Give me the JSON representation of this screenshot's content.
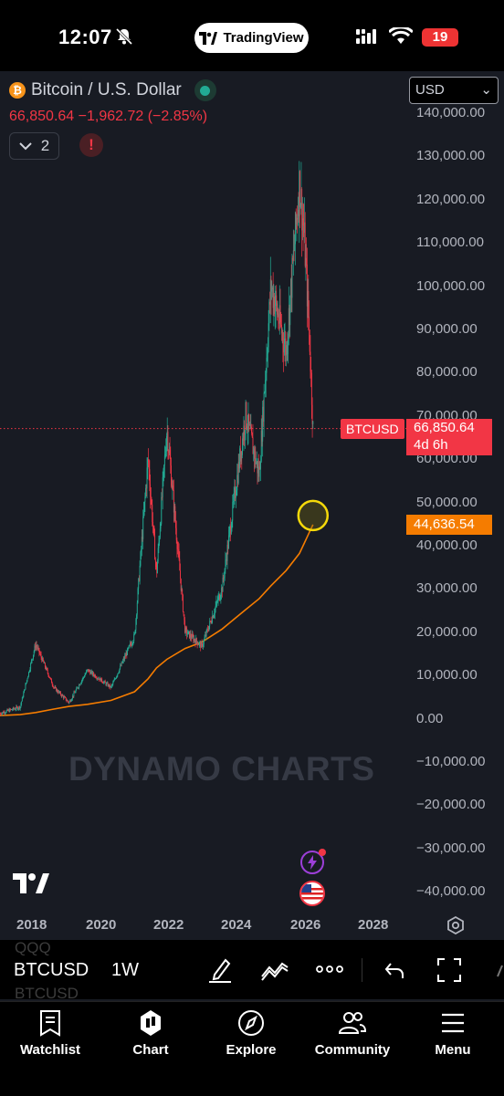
{
  "status_bar": {
    "time": "12:07",
    "app_pill": "TradingView",
    "battery": "19"
  },
  "header": {
    "symbol_name": "Bitcoin / U.S. Dollar",
    "price_change": "66,850.64  −1,962.72 (−2.85%)",
    "collapse_count": "2",
    "alert_glyph": "!",
    "currency": "USD",
    "colors": {
      "down": "#f23645",
      "up": "#22ab94",
      "accent": "#2962ff"
    }
  },
  "chart": {
    "watermark": "DYNAMO CHARTS",
    "price_tag_symbol": "BTCUSD",
    "last_price": "66,850.64",
    "countdown": "4d 6h",
    "ma_value": "44,636.54",
    "y_axis_labels": [
      "140,000.00",
      "130,000.00",
      "120,000.00",
      "110,000.00",
      "100,000.00",
      "90,000.00",
      "80,000.00",
      "70,000.00",
      "60,000.00",
      "50,000.00",
      "40,000.00",
      "30,000.00",
      "20,000.00",
      "10,000.00",
      "0.00",
      "−10,000.00",
      "−20,000.00",
      "−30,000.00",
      "−40,000.00"
    ],
    "x_axis_labels": [
      "2018",
      "2020",
      "2022",
      "2024",
      "2026",
      "2028"
    ]
  },
  "chart_data": {
    "type": "line",
    "x": [
      2016.9,
      2017.5,
      2017.96,
      2018.5,
      2018.95,
      2019.5,
      2020.2,
      2020.9,
      2021.3,
      2021.55,
      2021.86,
      2022.4,
      2022.9,
      2023.5,
      2024.2,
      2024.6,
      2024.95,
      2025.4,
      2025.8,
      2025.95,
      2026.1,
      2026.2
    ],
    "series": [
      {
        "values": [
          1000,
          2500,
          17000,
          7000,
          3500,
          11000,
          7000,
          19000,
          60000,
          33000,
          67000,
          20000,
          16500,
          30000,
          70000,
          56000,
          100000,
          85000,
          124000,
          110000,
          87000,
          66850
        ]
      },
      {
        "values": [
          500,
          700,
          1200,
          2000,
          2600,
          3100,
          4000,
          6000,
          9000,
          11500,
          13500,
          16000,
          17500,
          20500,
          25000,
          27500,
          30500,
          34000,
          38000,
          40500,
          43000,
          44636
        ]
      }
    ],
    "ylim": [
      -40000,
      140000
    ],
    "xlim": [
      2016.9,
      2029.0
    ]
  },
  "toolbar": {
    "ghost_top": "QQQ",
    "symbol": "BTCUSD",
    "interval": "1W",
    "ghost_bottom": "BTCUSD"
  },
  "tabs": [
    {
      "label": "Watchlist",
      "icon": "bookmark-list-icon"
    },
    {
      "label": "Chart",
      "icon": "candles-icon"
    },
    {
      "label": "Explore",
      "icon": "compass-icon"
    },
    {
      "label": "Community",
      "icon": "people-icon"
    },
    {
      "label": "Menu",
      "icon": "hamburger-icon"
    }
  ]
}
